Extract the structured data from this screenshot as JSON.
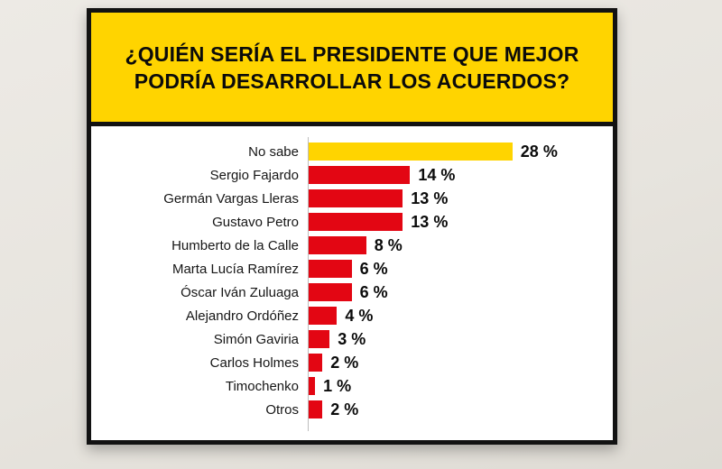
{
  "card": {
    "header_line1": "¿QUIÉN SERÍA EL PRESIDENTE QUE MEJOR",
    "header_line2": "PODRÍA DESARROLLAR LOS ACUERDOS?",
    "header_bg": "#ffd400",
    "border_color": "#121212"
  },
  "chart_data": {
    "type": "bar",
    "orientation": "horizontal",
    "title": "¿Quién sería el presidente que mejor podría desarrollar los acuerdos?",
    "categories": [
      "No sabe",
      "Sergio Fajardo",
      "Germán Vargas Lleras",
      "Gustavo Petro",
      "Humberto de la Calle",
      "Marta Lucía Ramírez",
      "Óscar Iván Zuluaga",
      "Alejandro Ordóñez",
      "Simón Gaviria",
      "Carlos Holmes",
      "Timochenko",
      "Otros"
    ],
    "values": [
      28,
      14,
      13,
      13,
      8,
      6,
      6,
      4,
      3,
      2,
      1,
      2
    ],
    "value_labels": [
      "28 %",
      "14 %",
      "13 %",
      "13 %",
      "8 %",
      "6 %",
      "6 %",
      "4 %",
      "3 %",
      "2 %",
      "1 %",
      "2 %"
    ],
    "value_suffix": " %",
    "xlim": [
      0,
      28
    ],
    "grid": false,
    "legend": "none",
    "bar_colors": {
      "default": "#e30613",
      "highlight": "#ffd400"
    },
    "highlight_index": 0
  }
}
